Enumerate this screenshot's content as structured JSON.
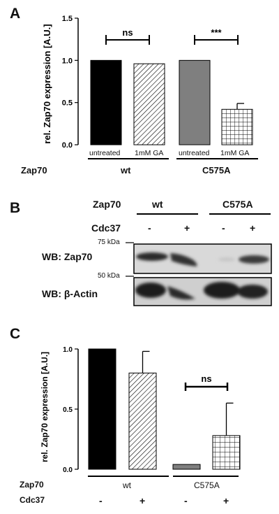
{
  "panels": {
    "a": "A",
    "b": "B",
    "c": "C"
  },
  "panel_a": {
    "ylabel": "rel. Zap70 expression [A.U.]",
    "yticks": [
      "0.0",
      "0.5",
      "1.0",
      "1.5"
    ],
    "treatments": [
      "untreated",
      "1mM GA",
      "untreated",
      "1mM GA"
    ],
    "group_row_label": "Zap70",
    "groups": [
      "wt",
      "C575A"
    ],
    "sig_labels": [
      "ns",
      "***"
    ]
  },
  "panel_b": {
    "zap70_label": "Zap70",
    "groups": [
      "wt",
      "C575A"
    ],
    "cdc37_label": "Cdc37",
    "cdc37_signs": [
      "-",
      "+",
      "-",
      "+"
    ],
    "marker_75": "75 kDa",
    "marker_50": "50 kDa",
    "blot1_label": "WB: Zap70",
    "blot2_label": "WB: β-Actin"
  },
  "panel_c": {
    "ylabel": "rel. Zap70 expression [A.U.]",
    "yticks": [
      "0.0",
      "0.5",
      "1.0"
    ],
    "row1_label": "Zap70",
    "groups": [
      "wt",
      "C575A"
    ],
    "row2_label": "Cdc37",
    "signs": [
      "-",
      "+",
      "-",
      "+"
    ],
    "sig_label": "ns"
  },
  "chart_data": [
    {
      "type": "bar",
      "categories": [
        "wt untreated",
        "wt 1mM GA",
        "C575A untreated",
        "C575A 1mM GA"
      ],
      "values": [
        1.0,
        0.96,
        1.0,
        0.42
      ],
      "errors": [
        0.0,
        0.01,
        0.0,
        0.07
      ],
      "ylim": [
        0,
        1.5
      ],
      "ylabel": "rel. Zap70 expression [A.U.]",
      "fills": [
        "solid-black",
        "diagonal-hatch",
        "solid-gray",
        "grid-hatch"
      ],
      "colors": [
        "#000000",
        "#ffffff",
        "#7f7f7f",
        "#ffffff"
      ]
    },
    {
      "type": "bar",
      "categories": [
        "wt -",
        "wt +",
        "C575A -",
        "C575A +"
      ],
      "values": [
        1.0,
        0.8,
        0.04,
        0.28
      ],
      "errors": [
        0.0,
        0.18,
        0.01,
        0.27
      ],
      "ylim": [
        0,
        1.0
      ],
      "ylabel": "rel. Zap70 expression [A.U.]",
      "fills": [
        "solid-black",
        "diagonal-hatch",
        "solid-gray",
        "grid-hatch"
      ],
      "colors": [
        "#000000",
        "#ffffff",
        "#7f7f7f",
        "#ffffff"
      ]
    }
  ]
}
